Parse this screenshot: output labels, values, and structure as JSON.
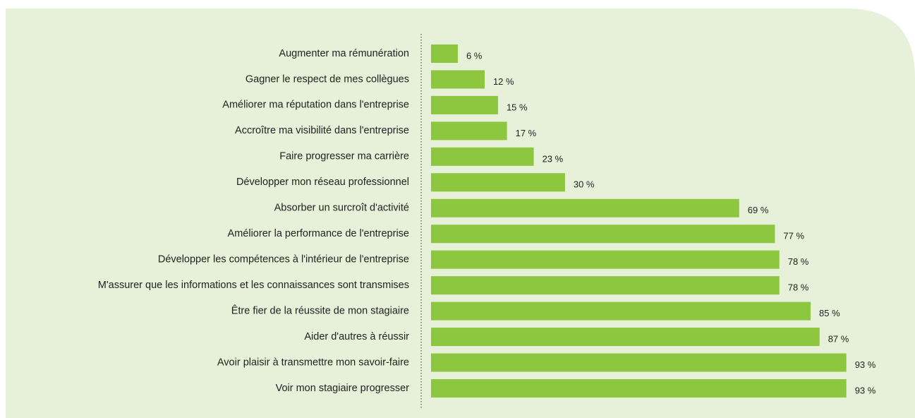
{
  "chart_data": {
    "type": "bar",
    "orientation": "horizontal",
    "categories": [
      "Augmenter ma rémunération",
      "Gagner le respect de mes collègues",
      "Améliorer ma réputation dans l'entreprise",
      "Accroître ma visibilité dans l'entreprise",
      "Faire progresser ma carrière",
      "Développer mon réseau professionnel",
      "Absorber un surcroît d'activité",
      "Améliorer la performance de l'entreprise",
      "Développer les compétences à l'intérieur de l'entreprise",
      "M'assurer que les informations et les connaissances sont transmises",
      "Être fier de la réussite de mon stagiaire",
      "Aider d'autres à réussir",
      "Avoir plaisir à transmettre mon savoir-faire",
      "Voir mon stagiaire progresser"
    ],
    "values": [
      6,
      12,
      15,
      17,
      23,
      30,
      69,
      77,
      78,
      78,
      85,
      87,
      93,
      93
    ],
    "value_labels": [
      "6 %",
      "12 %",
      "15 %",
      "17 %",
      "23 %",
      "30 %",
      "69 %",
      "77 %",
      "78 %",
      "78 %",
      "85 %",
      "87 %",
      "93 %",
      "93 %"
    ],
    "color": "#8dc63f",
    "xlim": [
      0,
      100
    ]
  }
}
